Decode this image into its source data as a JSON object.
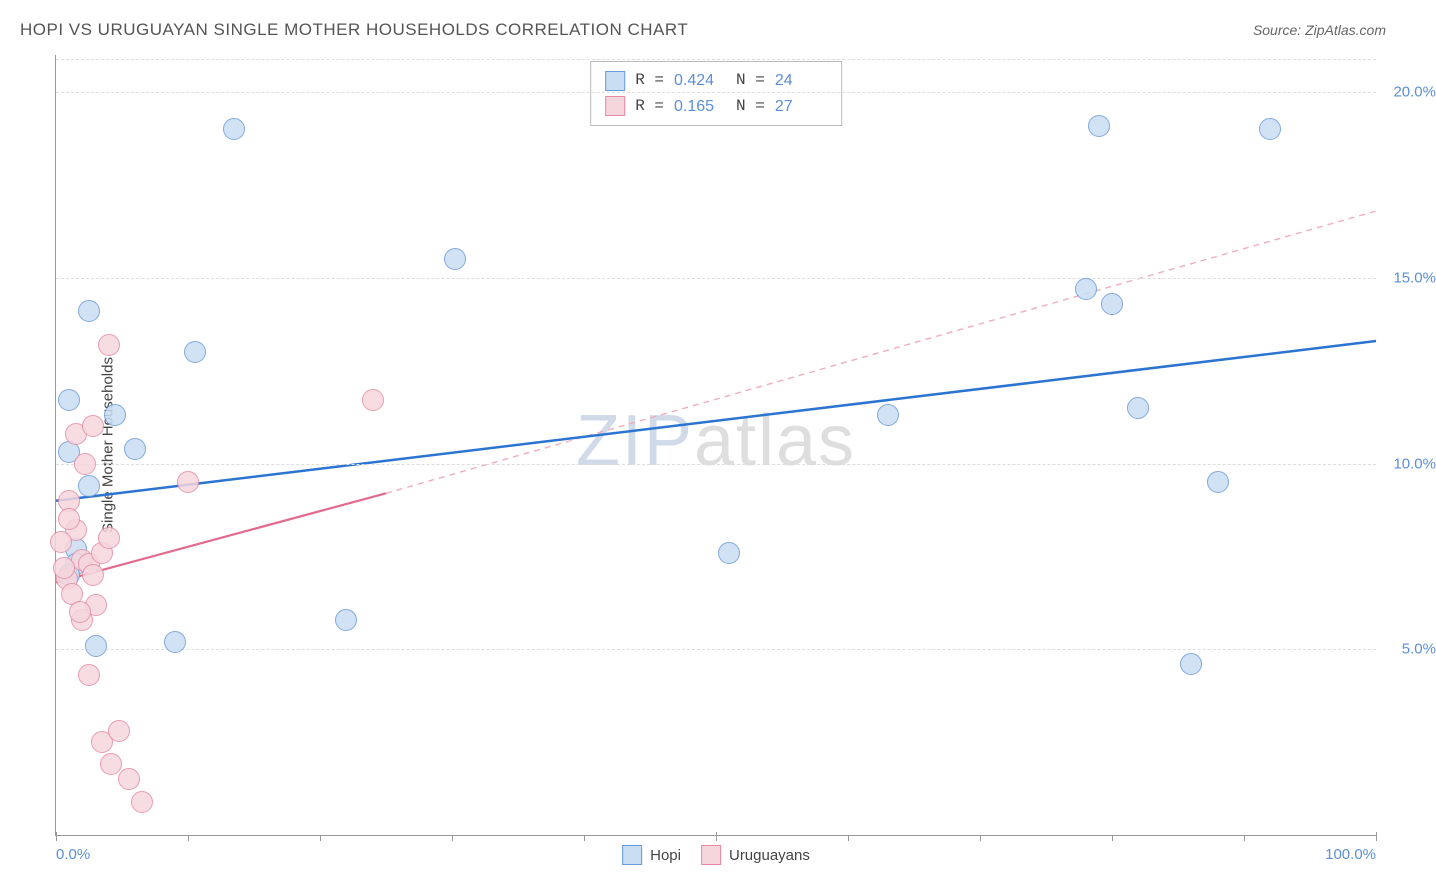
{
  "title": "HOPI VS URUGUAYAN SINGLE MOTHER HOUSEHOLDS CORRELATION CHART",
  "source": "Source: ZipAtlas.com",
  "y_axis_label": "Single Mother Households",
  "watermark": {
    "first": "ZIP",
    "rest": "atlas"
  },
  "chart": {
    "type": "scatter",
    "background_color": "#ffffff",
    "grid_color": "#dddddd",
    "axis_color": "#999999",
    "xlim": [
      0,
      100
    ],
    "ylim": [
      0,
      21
    ],
    "x_ticks_major": [
      0,
      50,
      100
    ],
    "x_ticks_minor": [
      10,
      20,
      30,
      40,
      60,
      70,
      80,
      90
    ],
    "x_tick_labels": {
      "0": "0.0%",
      "100": "100.0%"
    },
    "y_grid": [
      5,
      10,
      15,
      20
    ],
    "y_tick_labels": {
      "5": "5.0%",
      "10": "10.0%",
      "15": "15.0%",
      "20": "20.0%"
    },
    "y_tick_color": "#5b8fd6",
    "marker_radius": 11,
    "marker_stroke_width": 1.2,
    "series": [
      {
        "name": "Hopi",
        "fill": "#c9ddf3",
        "stroke": "#6a9bd8",
        "R": "0.424",
        "N": "24",
        "points": [
          [
            1.0,
            11.7
          ],
          [
            2.5,
            14.1
          ],
          [
            4.5,
            11.3
          ],
          [
            1.0,
            10.3
          ],
          [
            6.0,
            10.4
          ],
          [
            2.5,
            9.4
          ],
          [
            10.5,
            13.0
          ],
          [
            1.5,
            7.7
          ],
          [
            1.5,
            7.3
          ],
          [
            3.0,
            5.1
          ],
          [
            9.0,
            5.2
          ],
          [
            13.5,
            19.0
          ],
          [
            30.2,
            15.5
          ],
          [
            22.0,
            5.8
          ],
          [
            51.0,
            7.6
          ],
          [
            63.0,
            11.3
          ],
          [
            78.0,
            14.7
          ],
          [
            80.0,
            14.3
          ],
          [
            82.0,
            11.5
          ],
          [
            88.0,
            9.5
          ],
          [
            86.0,
            4.6
          ],
          [
            79.0,
            19.1
          ],
          [
            92.0,
            19.0
          ],
          [
            1.0,
            7.0
          ]
        ],
        "regression": {
          "x1": 0,
          "y1": 9.0,
          "x2": 100,
          "y2": 13.3,
          "color": "#2b74d1",
          "width": 2.5,
          "dash": "none"
        }
      },
      {
        "name": "Uruguayans",
        "fill": "#f6d6dd",
        "stroke": "#e78aa3",
        "R": "0.165",
        "N": "27",
        "points": [
          [
            0.8,
            6.9
          ],
          [
            1.2,
            6.5
          ],
          [
            1.5,
            8.2
          ],
          [
            2.0,
            7.4
          ],
          [
            2.5,
            7.3
          ],
          [
            2.8,
            7.0
          ],
          [
            3.5,
            7.6
          ],
          [
            4.0,
            8.0
          ],
          [
            1.0,
            9.0
          ],
          [
            1.5,
            10.8
          ],
          [
            2.2,
            10.0
          ],
          [
            2.8,
            11.0
          ],
          [
            4.0,
            13.2
          ],
          [
            10.0,
            9.5
          ],
          [
            24.0,
            11.7
          ],
          [
            2.0,
            5.8
          ],
          [
            2.5,
            4.3
          ],
          [
            3.5,
            2.5
          ],
          [
            4.2,
            1.9
          ],
          [
            5.5,
            1.5
          ],
          [
            6.5,
            0.9
          ],
          [
            4.8,
            2.8
          ],
          [
            3.0,
            6.2
          ],
          [
            1.8,
            6.0
          ],
          [
            0.6,
            7.2
          ],
          [
            0.4,
            7.9
          ],
          [
            1.0,
            8.5
          ]
        ],
        "regression_solid": {
          "x1": 0,
          "y1": 6.8,
          "x2": 25,
          "y2": 9.2,
          "color": "#e26a8c",
          "width": 2.2
        },
        "regression_dash": {
          "x1": 25,
          "y1": 9.2,
          "x2": 100,
          "y2": 16.8,
          "color": "#f0aebc",
          "width": 1.4,
          "dash": "6,5"
        }
      }
    ]
  },
  "legend_top": [
    {
      "swatch_fill": "#c9ddf3",
      "swatch_stroke": "#6a9bd8",
      "R_label": "R =",
      "R": "0.424",
      "N_label": "N =",
      "N": "24"
    },
    {
      "swatch_fill": "#f6d6dd",
      "swatch_stroke": "#e78aa3",
      "R_label": "R =",
      "R": "0.165",
      "N_label": "N =",
      "N": "27"
    }
  ],
  "legend_bottom": [
    {
      "swatch_fill": "#c9ddf3",
      "swatch_stroke": "#6a9bd8",
      "label": "Hopi"
    },
    {
      "swatch_fill": "#f6d6dd",
      "swatch_stroke": "#e78aa3",
      "label": "Uruguayans"
    }
  ]
}
